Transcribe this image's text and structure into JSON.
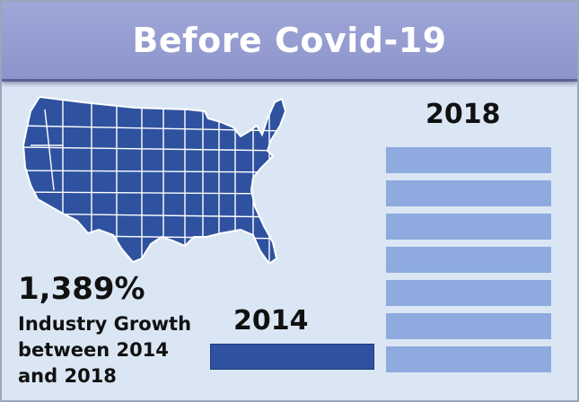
{
  "banner": {
    "title": "Before Covid-19"
  },
  "stat": {
    "value": "1,389%",
    "description": "Industry Growth between 2014 and 2018"
  },
  "comparison": {
    "start": {
      "label": "2014",
      "units": 1
    },
    "end": {
      "label": "2018",
      "units": 7
    }
  },
  "icons": {
    "map": "usa-map-icon"
  },
  "colors": {
    "banner": "#9aa2d5",
    "panel": "#dae6f4",
    "map": "#2f52a0",
    "bar_2014": "#2f52a0",
    "bar_2018": "#8eaadf"
  }
}
